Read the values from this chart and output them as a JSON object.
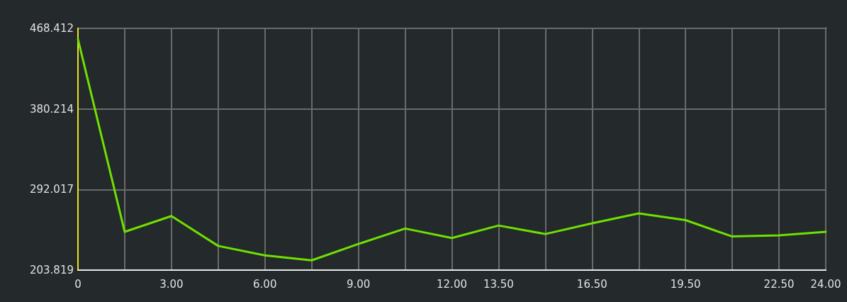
{
  "chart_data": {
    "type": "line",
    "x": [
      0,
      1.5,
      3,
      4.5,
      6,
      7.5,
      9,
      10.5,
      12,
      13.5,
      15,
      16.5,
      18,
      19.5,
      21,
      22.5,
      24
    ],
    "series": [
      {
        "color": "#6fe000",
        "values": [
          456.5,
          245.7,
          263.0,
          230.3,
          219.9,
          214.5,
          232.4,
          249.3,
          238.9,
          252.6,
          243.3,
          255.0,
          265.9,
          258.5,
          240.6,
          241.8,
          245.7
        ]
      }
    ],
    "xlim": [
      0,
      24
    ],
    "xticks": [
      0,
      {
        "value": 1.5,
        "label": null
      },
      {
        "value": 3,
        "label": "3.00"
      },
      {
        "value": 4.5,
        "label": null
      },
      {
        "value": 6,
        "label": "6.00"
      },
      {
        "value": 7.5,
        "label": null
      },
      {
        "value": 9,
        "label": "9.00"
      },
      {
        "value": 10.5,
        "label": null
      },
      {
        "value": 12,
        "label": "12.00"
      },
      {
        "value": 13.5,
        "label": "13.50"
      },
      {
        "value": 15,
        "label": null
      },
      {
        "value": 16.5,
        "label": "16.50"
      },
      {
        "value": 18,
        "label": null
      },
      {
        "value": 19.5,
        "label": "19.50"
      },
      {
        "value": 21,
        "label": null
      },
      {
        "value": 22.5,
        "label": "22.50"
      },
      {
        "value": 24,
        "label": "24.00"
      }
    ],
    "ylim": [
      203.819,
      468.412
    ],
    "yticks": [
      203.819,
      292.017,
      380.214,
      468.412
    ],
    "grid": true,
    "marker": "none",
    "line_style": "solid"
  }
}
